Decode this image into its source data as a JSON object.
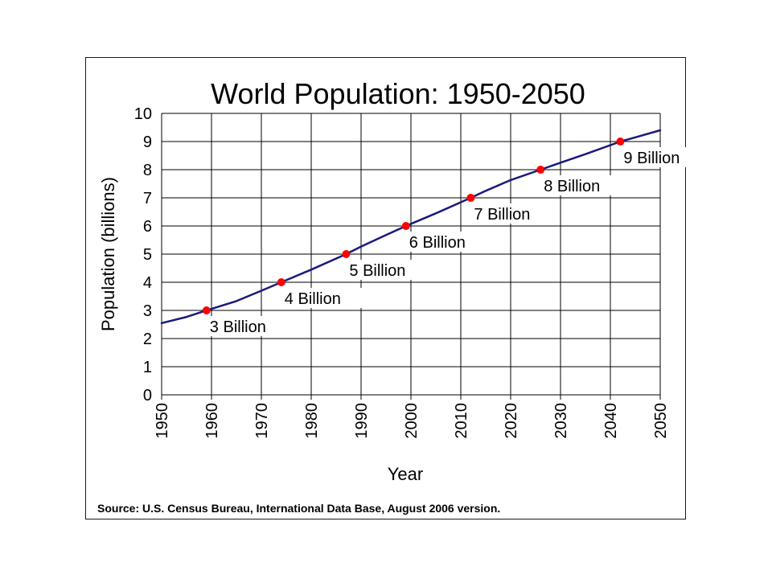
{
  "chart_data": {
    "type": "line",
    "title": "World Population: 1950-2050",
    "xlabel": "Year",
    "ylabel": "Population (billions)",
    "xlim": [
      1950,
      2050
    ],
    "ylim": [
      0,
      10
    ],
    "x_ticks": [
      1950,
      1960,
      1970,
      1980,
      1990,
      2000,
      2010,
      2020,
      2030,
      2040,
      2050
    ],
    "y_ticks": [
      0,
      1,
      2,
      3,
      4,
      5,
      6,
      7,
      8,
      9,
      10
    ],
    "grid": true,
    "line_color": "#1a1a7a",
    "marker_color": "#ff0000",
    "series": [
      {
        "x": [
          1950,
          1955,
          1959,
          1965,
          1970,
          1974,
          1980,
          1987,
          1990,
          1995,
          1999,
          2005,
          2012,
          2015,
          2020,
          2026,
          2030,
          2035,
          2042,
          2045,
          2050
        ],
        "values": [
          2.55,
          2.77,
          3.0,
          3.33,
          3.7,
          4.0,
          4.45,
          5.0,
          5.27,
          5.68,
          6.0,
          6.45,
          7.0,
          7.25,
          7.63,
          8.0,
          8.25,
          8.55,
          9.0,
          9.15,
          9.4
        ]
      }
    ],
    "milestones": [
      {
        "year": 1959,
        "value": 3,
        "label": "3 Billion"
      },
      {
        "year": 1974,
        "value": 4,
        "label": "4 Billion"
      },
      {
        "year": 1987,
        "value": 5,
        "label": "5 Billion"
      },
      {
        "year": 1999,
        "value": 6,
        "label": "6 Billion"
      },
      {
        "year": 2012,
        "value": 7,
        "label": "7 Billion"
      },
      {
        "year": 2026,
        "value": 8,
        "label": "8 Billion"
      },
      {
        "year": 2042,
        "value": 9,
        "label": "9 Billion"
      }
    ]
  },
  "source": "Source: U.S. Census Bureau, International Data Base, August 2006 version."
}
